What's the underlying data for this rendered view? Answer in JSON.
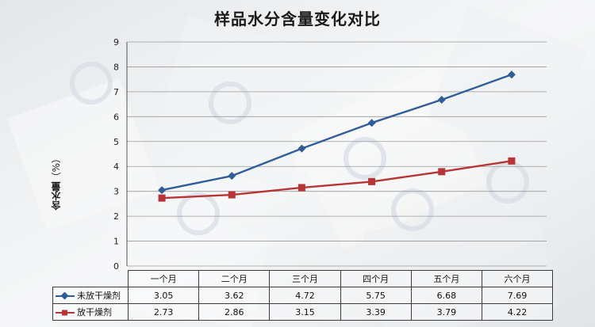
{
  "chart_data": {
    "type": "line",
    "title": "样品水分含量变化对比",
    "ylabel": "含水量",
    "ylabel_unit": "（%）",
    "categories": [
      "一个月",
      "二个月",
      "三个月",
      "四个月",
      "五个月",
      "六个月"
    ],
    "ylim": [
      0,
      9
    ],
    "yticks": [
      "0",
      "1",
      "2",
      "3",
      "4",
      "5",
      "6",
      "7",
      "8",
      "9"
    ],
    "grid": true,
    "legend": "data-table",
    "series": [
      {
        "name": "未放干燥剂",
        "values": [
          3.05,
          3.62,
          4.72,
          5.75,
          6.68,
          7.69
        ],
        "labels": [
          "3.05",
          "3.62",
          "4.72",
          "5.75",
          "6.68",
          "7.69"
        ],
        "color": "#2f5d9a",
        "marker": "diamond"
      },
      {
        "name": "放干燥剂",
        "values": [
          2.73,
          2.86,
          3.15,
          3.39,
          3.79,
          4.22
        ],
        "labels": [
          "2.73",
          "2.86",
          "3.15",
          "3.39",
          "3.79",
          "4.22"
        ],
        "color": "#b83535",
        "marker": "square"
      }
    ]
  }
}
